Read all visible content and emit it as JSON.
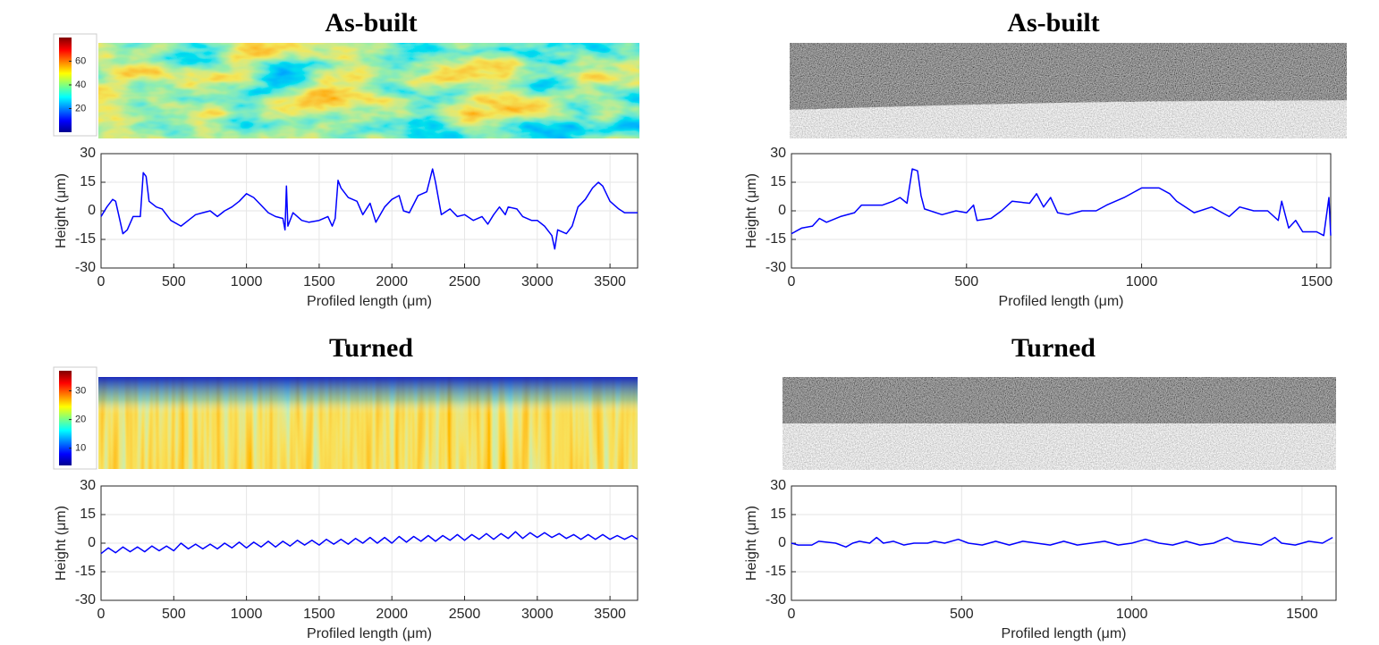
{
  "chart_data": [
    {
      "type": "line",
      "title": "As-built",
      "colorbar": {
        "lim": [
          0,
          80
        ],
        "ticks": [
          20,
          40,
          60
        ]
      },
      "x": [
        0,
        40,
        80,
        100,
        130,
        150,
        180,
        220,
        270,
        290,
        310,
        330,
        380,
        420,
        480,
        550,
        600,
        650,
        700,
        750,
        800,
        850,
        900,
        950,
        1000,
        1050,
        1100,
        1150,
        1200,
        1250,
        1265,
        1275,
        1285,
        1320,
        1380,
        1430,
        1500,
        1560,
        1590,
        1610,
        1630,
        1650,
        1700,
        1760,
        1800,
        1850,
        1890,
        1950,
        2000,
        2050,
        2080,
        2120,
        2180,
        2240,
        2280,
        2300,
        2340,
        2400,
        2450,
        2500,
        2560,
        2620,
        2660,
        2700,
        2740,
        2780,
        2800,
        2860,
        2900,
        2960,
        3000,
        3050,
        3100,
        3120,
        3140,
        3200,
        3240,
        3280,
        3330,
        3380,
        3420,
        3450,
        3500,
        3560,
        3600,
        3690
      ],
      "values": [
        -3,
        2,
        6,
        5,
        -5,
        -12,
        -10,
        -3,
        -3,
        20,
        18,
        5,
        2,
        1,
        -5,
        -8,
        -5,
        -2,
        -1,
        0,
        -3,
        0,
        2,
        5,
        9,
        7,
        3,
        -1,
        -3,
        -4,
        -10,
        13,
        -8,
        -1,
        -5,
        -6,
        -5,
        -3,
        -8,
        -4,
        16,
        12,
        7,
        5,
        -2,
        4,
        -6,
        2,
        6,
        8,
        0,
        -1,
        8,
        10,
        22,
        15,
        -2,
        1,
        -3,
        -2,
        -5,
        -3,
        -7,
        -2,
        2,
        -2,
        2,
        1,
        -3,
        -5,
        -5,
        -8,
        -13,
        -20,
        -10,
        -12,
        -8,
        2,
        6,
        12,
        15,
        13,
        5,
        1,
        -1,
        -1
      ],
      "color": "#0000ff",
      "xlim": [
        0,
        3690
      ],
      "ylim": [
        -30,
        30
      ],
      "xticks": [
        0,
        500,
        1000,
        1500,
        2000,
        2500,
        3000,
        3500
      ],
      "yticks": [
        -30,
        -15,
        0,
        15,
        30
      ],
      "xlabel": "Profiled length (μm)",
      "ylabel": "Height (μm)",
      "grid": true
    },
    {
      "type": "line",
      "title": "As-built",
      "x": [
        0,
        30,
        60,
        80,
        100,
        140,
        180,
        200,
        260,
        290,
        310,
        330,
        345,
        360,
        370,
        380,
        430,
        470,
        500,
        520,
        530,
        570,
        600,
        630,
        680,
        700,
        720,
        740,
        760,
        790,
        830,
        870,
        900,
        950,
        1000,
        1050,
        1080,
        1100,
        1150,
        1200,
        1250,
        1280,
        1320,
        1360,
        1390,
        1400,
        1420,
        1440,
        1460,
        1500,
        1520,
        1535,
        1540
      ],
      "values": [
        -12,
        -9,
        -8,
        -4,
        -6,
        -3,
        -1,
        3,
        3,
        5,
        7,
        4,
        22,
        21,
        8,
        1,
        -2,
        0,
        -1,
        3,
        -5,
        -4,
        0,
        5,
        4,
        9,
        2,
        7,
        -1,
        -2,
        0,
        0,
        3,
        7,
        12,
        12,
        9,
        5,
        -1,
        2,
        -3,
        2,
        0,
        0,
        -5,
        5,
        -9,
        -5,
        -11,
        -11,
        -13,
        7,
        -13
      ],
      "color": "#0000ff",
      "xlim": [
        0,
        1540
      ],
      "ylim": [
        -30,
        30
      ],
      "xticks": [
        0,
        500,
        1000,
        1500
      ],
      "yticks": [
        -30,
        -15,
        0,
        15,
        30
      ],
      "xlabel": "Profiled length (μm)",
      "ylabel": "Height (μm)",
      "grid": true
    },
    {
      "type": "line",
      "title": "Turned",
      "colorbar": {
        "lim": [
          4,
          37
        ],
        "ticks": [
          10,
          20,
          30
        ]
      },
      "x": [
        0,
        50,
        100,
        150,
        200,
        250,
        300,
        350,
        400,
        450,
        500,
        550,
        600,
        650,
        700,
        750,
        800,
        850,
        900,
        950,
        1000,
        1050,
        1100,
        1150,
        1200,
        1250,
        1300,
        1350,
        1400,
        1450,
        1500,
        1550,
        1600,
        1650,
        1700,
        1750,
        1800,
        1850,
        1900,
        1950,
        2000,
        2050,
        2100,
        2150,
        2200,
        2250,
        2300,
        2350,
        2400,
        2450,
        2500,
        2550,
        2600,
        2650,
        2700,
        2750,
        2800,
        2850,
        2900,
        2950,
        3000,
        3050,
        3100,
        3150,
        3200,
        3250,
        3300,
        3350,
        3400,
        3450,
        3500,
        3550,
        3600,
        3650,
        3690
      ],
      "values": [
        -5.5,
        -2.5,
        -5,
        -2,
        -4.5,
        -2,
        -4.5,
        -1.5,
        -4,
        -1.5,
        -4,
        0,
        -3,
        -0.5,
        -3,
        -0.5,
        -3,
        0,
        -2.5,
        0.5,
        -2.5,
        0.5,
        -2,
        1,
        -2,
        1,
        -1.5,
        1.5,
        -1,
        1.5,
        -1,
        2,
        -0.5,
        2,
        -0.5,
        2.5,
        0,
        3,
        0,
        3,
        0,
        3.5,
        0.5,
        3.5,
        1,
        4,
        1,
        4,
        1.5,
        4.5,
        1.5,
        4.5,
        2,
        5,
        2,
        5,
        2.5,
        6,
        2.5,
        5.5,
        3,
        5.5,
        3,
        5,
        2.5,
        4.5,
        2,
        4.5,
        2,
        4.5,
        2,
        4,
        2,
        4,
        2
      ],
      "color": "#0000ff",
      "xlim": [
        0,
        3690
      ],
      "ylim": [
        -30,
        30
      ],
      "xticks": [
        0,
        500,
        1000,
        1500,
        2000,
        2500,
        3000,
        3500
      ],
      "yticks": [
        -30,
        -15,
        0,
        15,
        30
      ],
      "xlabel": "Profiled length (μm)",
      "ylabel": "Height (μm)",
      "grid": true
    },
    {
      "type": "line",
      "title": "Turned",
      "x": [
        0,
        20,
        60,
        80,
        130,
        160,
        180,
        200,
        230,
        250,
        270,
        300,
        330,
        360,
        400,
        420,
        450,
        490,
        520,
        560,
        600,
        640,
        680,
        720,
        760,
        800,
        840,
        880,
        920,
        960,
        1000,
        1040,
        1080,
        1120,
        1160,
        1200,
        1240,
        1280,
        1300,
        1340,
        1380,
        1420,
        1440,
        1480,
        1520,
        1560,
        1590
      ],
      "values": [
        0,
        -1,
        -1,
        1,
        0,
        -2,
        0,
        1,
        0,
        3,
        0,
        1,
        -1,
        0,
        0,
        1,
        0,
        2,
        0,
        -1,
        1,
        -1,
        1,
        0,
        -1,
        1,
        -1,
        0,
        1,
        -1,
        0,
        2,
        0,
        -1,
        1,
        -1,
        0,
        3,
        1,
        0,
        -1,
        3,
        0,
        -1,
        1,
        0,
        3
      ],
      "color": "#0000ff",
      "xlim": [
        0,
        1600
      ],
      "ylim": [
        -30,
        30
      ],
      "xticks": [
        0,
        500,
        1000,
        1500
      ],
      "yticks": [
        -30,
        -15,
        0,
        15,
        30
      ],
      "xlabel": "Profiled length (μm)",
      "ylabel": "Height (μm)",
      "grid": true
    }
  ]
}
